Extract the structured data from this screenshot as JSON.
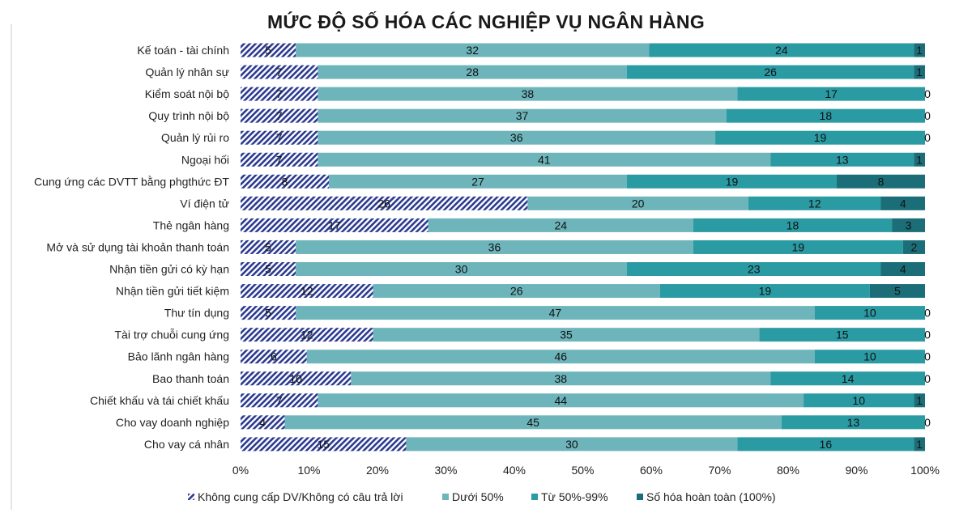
{
  "chart_data": {
    "type": "bar",
    "orientation": "horizontal",
    "stacked": "percent",
    "title": "MỨC ĐỘ SỐ HÓA CÁC NGHIỆP VỤ NGÂN HÀNG",
    "categories": [
      "Kế toán - tài chính",
      "Quản lý nhân sự",
      "Kiểm soát nội bộ",
      "Quy trình nội bộ",
      "Quản lý rủi ro",
      "Ngoại hối",
      "Cung ứng các DVTT bằng phgthức ĐT",
      "Ví điện tử",
      "Thẻ ngân hàng",
      "Mở và sử dụng tài khoản thanh toán",
      "Nhận tiền gửi có kỳ hạn",
      "Nhận tiền gửi tiết kiệm",
      "Thư tín dụng",
      "Tài trợ chuỗi cung ứng",
      "Bảo lãnh ngân hàng",
      "Bao thanh toán",
      "Chiết khấu và tái chiết khấu",
      "Cho vay doanh nghiệp",
      "Cho vay cá nhân"
    ],
    "series": [
      {
        "name": "Không cung cấp DV/Không có câu trả lời",
        "color": "#2b3a8f",
        "pattern": "hatched",
        "values": [
          5,
          7,
          7,
          7,
          7,
          7,
          8,
          26,
          17,
          5,
          5,
          12,
          5,
          12,
          6,
          10,
          7,
          4,
          15
        ]
      },
      {
        "name": "Dưới 50%",
        "color": "#6db5bb",
        "values": [
          32,
          28,
          38,
          37,
          36,
          41,
          27,
          20,
          24,
          36,
          30,
          26,
          47,
          35,
          46,
          38,
          44,
          45,
          30
        ]
      },
      {
        "name": "Từ 50%-99%",
        "color": "#2a9aa3",
        "values": [
          24,
          26,
          17,
          18,
          19,
          13,
          19,
          12,
          18,
          19,
          23,
          19,
          10,
          15,
          10,
          14,
          10,
          13,
          16
        ]
      },
      {
        "name": "Số hóa hoàn toàn (100%)",
        "color": "#1b6e78",
        "values": [
          1,
          1,
          0,
          0,
          0,
          1,
          8,
          4,
          3,
          2,
          4,
          5,
          0,
          0,
          0,
          0,
          1,
          0,
          1
        ]
      }
    ],
    "xticks": [
      "0%",
      "10%",
      "20%",
      "30%",
      "40%",
      "50%",
      "60%",
      "70%",
      "80%",
      "90%",
      "100%"
    ],
    "xlim": [
      0,
      100
    ],
    "grid": false,
    "legend": "bottom"
  }
}
